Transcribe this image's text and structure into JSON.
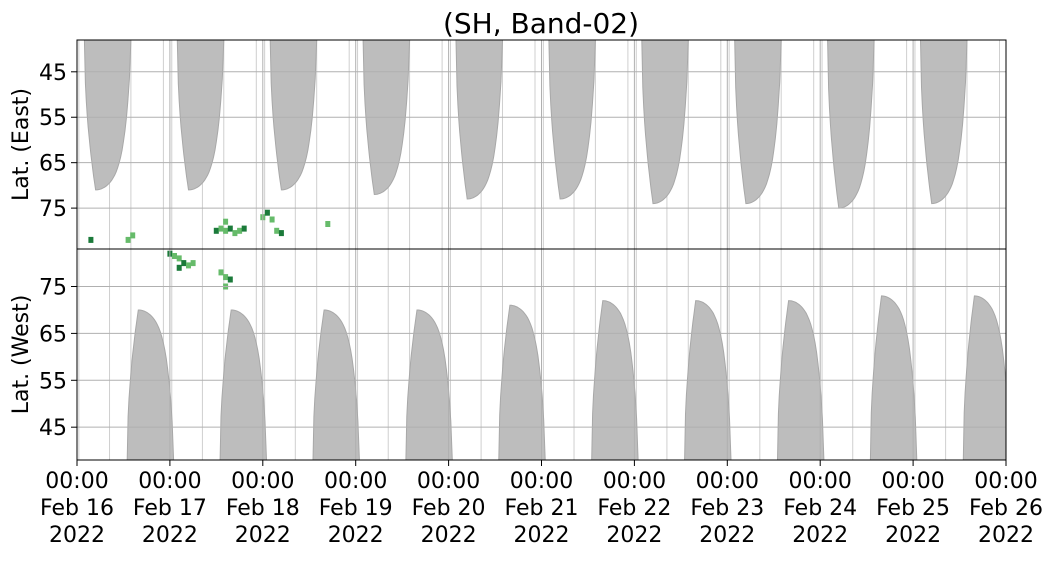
{
  "chart_data": {
    "type": "heatmap",
    "title": "(SH, Band-02)",
    "xlim_days": [
      0,
      10
    ],
    "x_tick_labels": [
      {
        "time": "00:00",
        "date": "Feb 16",
        "year": "2022"
      },
      {
        "time": "00:00",
        "date": "Feb 17",
        "year": "2022"
      },
      {
        "time": "00:00",
        "date": "Feb 18",
        "year": "2022"
      },
      {
        "time": "00:00",
        "date": "Feb 19",
        "year": "2022"
      },
      {
        "time": "00:00",
        "date": "Feb 20",
        "year": "2022"
      },
      {
        "time": "00:00",
        "date": "Feb 21",
        "year": "2022"
      },
      {
        "time": "00:00",
        "date": "Feb 22",
        "year": "2022"
      },
      {
        "time": "00:00",
        "date": "Feb 23",
        "year": "2022"
      },
      {
        "time": "00:00",
        "date": "Feb 24",
        "year": "2022"
      },
      {
        "time": "00:00",
        "date": "Feb 25",
        "year": "2022"
      },
      {
        "time": "00:00",
        "date": "Feb 26",
        "year": "2022"
      }
    ],
    "grid": true,
    "panels": [
      {
        "name": "east",
        "ylabel": "Lat. (East)",
        "ylim": [
          38,
          84
        ],
        "y_inverted": true,
        "yticks": [
          45,
          55,
          65,
          75
        ],
        "gray_pass_start_lats": [
          71,
          71,
          71,
          72,
          73,
          73,
          74,
          74,
          75,
          74
        ],
        "green_points": [
          [
            1.5,
            80
          ],
          [
            1.55,
            79.5
          ],
          [
            1.6,
            80
          ],
          [
            1.65,
            79.5
          ],
          [
            1.7,
            80.5
          ],
          [
            1.75,
            80
          ],
          [
            1.8,
            79.5
          ],
          [
            1.6,
            78
          ],
          [
            2.0,
            77
          ],
          [
            2.05,
            76
          ],
          [
            2.1,
            77.5
          ],
          [
            2.15,
            80
          ],
          [
            2.2,
            80.5
          ],
          [
            0.55,
            82
          ],
          [
            0.6,
            81
          ],
          [
            0.15,
            82
          ],
          [
            2.7,
            78.5
          ]
        ]
      },
      {
        "name": "west",
        "ylabel": "Lat. (West)",
        "ylim": [
          38,
          83
        ],
        "y_inverted": false,
        "yticks": [
          45,
          55,
          65,
          75
        ],
        "gray_pass_start_lats": [
          70,
          70,
          70,
          70,
          71,
          72,
          72,
          72,
          73,
          73
        ],
        "green_points": [
          [
            1.0,
            82
          ],
          [
            1.05,
            81.5
          ],
          [
            1.1,
            81
          ],
          [
            1.15,
            80
          ],
          [
            1.2,
            79.5
          ],
          [
            1.25,
            80
          ],
          [
            1.1,
            79
          ],
          [
            1.55,
            78
          ],
          [
            1.6,
            77
          ],
          [
            1.65,
            76.5
          ],
          [
            1.6,
            75
          ]
        ]
      }
    ],
    "colors": {
      "pass_fill": "#bdbdbd",
      "pass_edge": "#a8a8a8",
      "green_light": "#66bb6a",
      "green_dark": "#1b7a3a",
      "grid": "#b0b0b0",
      "axis": "#000000"
    }
  }
}
